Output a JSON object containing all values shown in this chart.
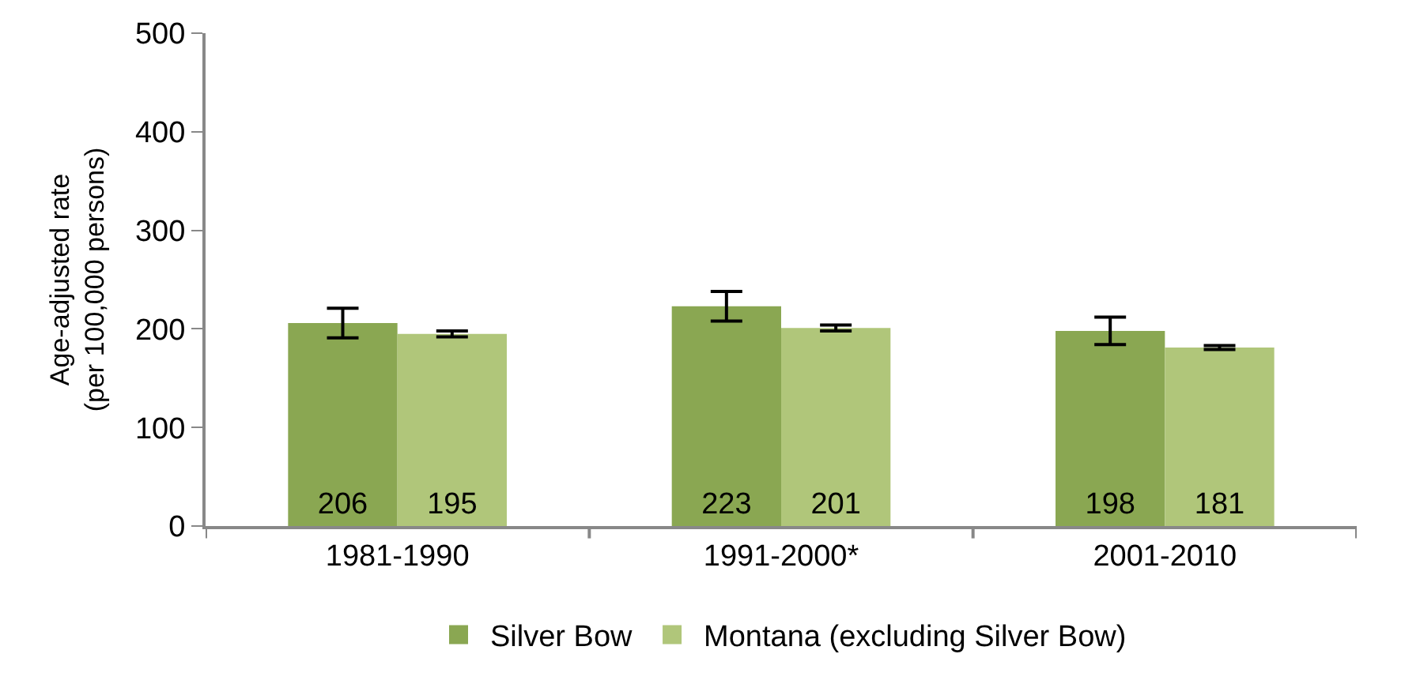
{
  "chart_data": {
    "type": "bar",
    "ylabel": "Age-adjusted rate\n(per 100,000 persons)",
    "categories": [
      "1981-1990",
      "1991-2000*",
      "2001-2010"
    ],
    "series": [
      {
        "name": "Silver Bow",
        "color": "#8aa752",
        "values": [
          206,
          223,
          198
        ],
        "errors": [
          15,
          15,
          14
        ]
      },
      {
        "name": "Montana (excluding Silver Bow)",
        "color": "#b0c67a",
        "values": [
          195,
          201,
          181
        ],
        "errors": [
          3,
          3,
          2
        ]
      }
    ],
    "ylim": [
      0,
      500
    ],
    "yticks": [
      0,
      100,
      200,
      300,
      400,
      500
    ],
    "grid": false,
    "legend": "bottom",
    "data_labels": true
  }
}
